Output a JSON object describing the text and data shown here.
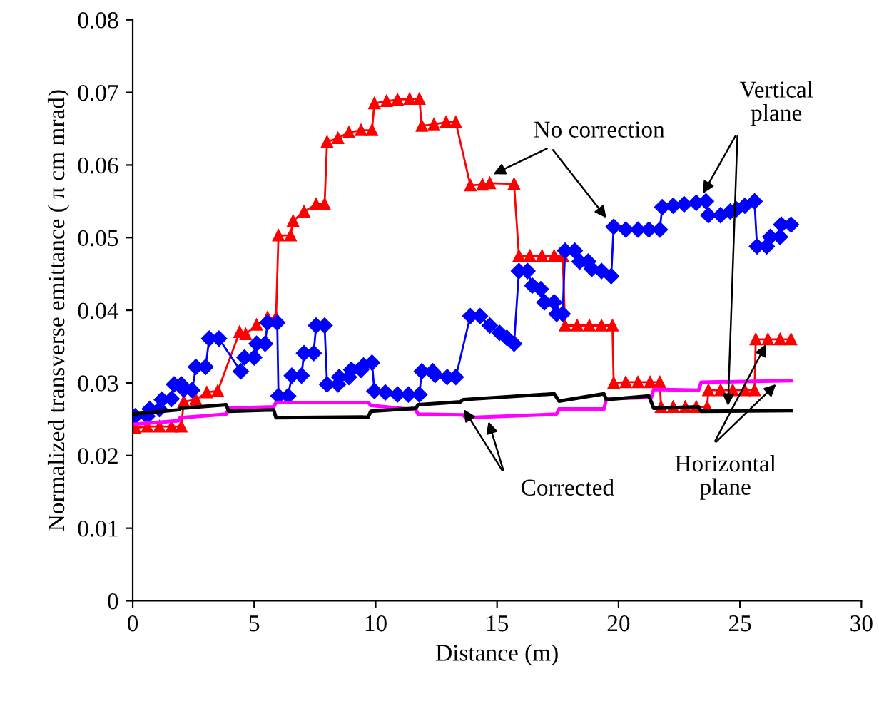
{
  "chart_data": {
    "type": "line",
    "xlabel": "Distance (m)",
    "ylabel": "Normalized transverse emittance ( π cm mrad)",
    "xlim": [
      0,
      30
    ],
    "ylim": [
      0,
      0.08
    ],
    "xticks": [
      0,
      5,
      10,
      15,
      20,
      25,
      30
    ],
    "yticks": [
      0,
      0.01,
      0.02,
      0.03,
      0.04,
      0.05,
      0.06,
      0.07,
      0.08
    ],
    "grid": false,
    "annotations": [
      {
        "text": "No correction",
        "x": 14.7,
        "y": 0.0585
      },
      {
        "text": "Vertical plane",
        "x": 23.4,
        "y": 0.0556
      },
      {
        "text": "Corrected",
        "x": 13.55,
        "y": 0.0268
      },
      {
        "text": "Horizontal plane",
        "x": 26.15,
        "y": 0.0358
      }
    ],
    "series": [
      {
        "color": "#ff0000",
        "marker": "triangle",
        "x": [
          0.1,
          0.6,
          1.1,
          1.6,
          2.0,
          2.1,
          2.6,
          3.05,
          3.5,
          4.4,
          4.65,
          5.1,
          5.55,
          5.9,
          6.0,
          6.5,
          6.6,
          7.05,
          7.55,
          7.9,
          8.0,
          8.45,
          8.9,
          9.4,
          9.85,
          9.95,
          10.45,
          10.9,
          11.4,
          11.8,
          11.9,
          12.4,
          12.9,
          13.3,
          13.9,
          14.4,
          14.7,
          15.7,
          15.9,
          16.35,
          16.85,
          17.35,
          17.7,
          17.8,
          18.3,
          18.8,
          19.3,
          19.75,
          19.8,
          20.3,
          20.8,
          21.3,
          21.7,
          21.75,
          22.25,
          22.75,
          23.2,
          23.65,
          23.7,
          24.2,
          24.7,
          25.2,
          25.6,
          25.65,
          26.15,
          26.65,
          27.1
        ],
        "values": [
          0.0238,
          0.024,
          0.024,
          0.024,
          0.024,
          0.0274,
          0.0277,
          0.0287,
          0.0289,
          0.037,
          0.0367,
          0.038,
          0.039,
          0.039,
          0.0503,
          0.0503,
          0.0523,
          0.0536,
          0.0546,
          0.0546,
          0.0632,
          0.0637,
          0.0645,
          0.0648,
          0.0648,
          0.0685,
          0.0688,
          0.069,
          0.0691,
          0.0691,
          0.0654,
          0.0656,
          0.0659,
          0.0659,
          0.0572,
          0.0573,
          0.0575,
          0.0574,
          0.0475,
          0.0475,
          0.0475,
          0.0475,
          0.0475,
          0.0379,
          0.0379,
          0.0379,
          0.0379,
          0.0379,
          0.03,
          0.0301,
          0.0301,
          0.0301,
          0.0301,
          0.0267,
          0.0267,
          0.0267,
          0.0267,
          0.0267,
          0.029,
          0.029,
          0.029,
          0.029,
          0.029,
          0.036,
          0.036,
          0.036,
          0.036
        ]
      },
      {
        "color": "#0000ff",
        "marker": "diamond",
        "x": [
          0.1,
          0.6,
          0.7,
          1.1,
          1.2,
          1.6,
          1.7,
          2.0,
          2.1,
          2.45,
          2.6,
          3.0,
          3.15,
          3.55,
          4.45,
          4.6,
          5.0,
          5.1,
          5.45,
          5.55,
          5.95,
          6.0,
          6.4,
          6.55,
          6.95,
          7.05,
          7.45,
          7.55,
          7.9,
          8.0,
          8.45,
          8.5,
          8.9,
          9.0,
          9.4,
          9.5,
          9.85,
          9.95,
          10.4,
          10.9,
          11.35,
          11.8,
          11.9,
          12.35,
          12.45,
          12.95,
          13.3,
          13.9,
          14.3,
          14.7,
          15.1,
          15.4,
          15.7,
          15.9,
          16.25,
          16.45,
          16.8,
          16.95,
          17.35,
          17.45,
          17.7,
          17.8,
          18.2,
          18.4,
          18.75,
          18.9,
          19.3,
          19.7,
          19.8,
          20.3,
          20.8,
          21.25,
          21.7,
          21.8,
          22.25,
          22.7,
          23.2,
          23.6,
          23.7,
          24.2,
          24.6,
          24.85,
          25.2,
          25.6,
          25.7,
          26.1,
          26.25,
          26.65,
          26.7,
          27.1
        ],
        "values": [
          0.0254,
          0.0254,
          0.0264,
          0.0264,
          0.0277,
          0.0278,
          0.0298,
          0.0298,
          0.0291,
          0.029,
          0.0322,
          0.0322,
          0.0361,
          0.0361,
          0.0316,
          0.0335,
          0.0335,
          0.0354,
          0.0354,
          0.0383,
          0.0383,
          0.0282,
          0.0282,
          0.031,
          0.031,
          0.0341,
          0.0341,
          0.0379,
          0.0379,
          0.0298,
          0.0298,
          0.0308,
          0.0308,
          0.0318,
          0.0318,
          0.0324,
          0.0328,
          0.0289,
          0.0287,
          0.0284,
          0.0284,
          0.0284,
          0.0316,
          0.0316,
          0.0311,
          0.0308,
          0.0308,
          0.0392,
          0.0392,
          0.0379,
          0.0369,
          0.0362,
          0.0354,
          0.0454,
          0.0454,
          0.0434,
          0.0429,
          0.0411,
          0.0411,
          0.0395,
          0.0395,
          0.0482,
          0.0482,
          0.0467,
          0.0467,
          0.0457,
          0.0454,
          0.0447,
          0.0515,
          0.0511,
          0.0511,
          0.0511,
          0.0511,
          0.0542,
          0.0544,
          0.0546,
          0.0548,
          0.055,
          0.0531,
          0.0531,
          0.0536,
          0.0539,
          0.0544,
          0.055,
          0.0488,
          0.0488,
          0.0501,
          0.0501,
          0.0518,
          0.0518
        ]
      },
      {
        "color": "#ff00ff",
        "marker": "none",
        "x": [
          0,
          1.9,
          1.95,
          3.85,
          3.95,
          5.8,
          5.9,
          9.7,
          9.8,
          11.65,
          11.75,
          13.6,
          13.7,
          17.45,
          17.55,
          19.4,
          19.5,
          21.35,
          21.45,
          23.3,
          23.4,
          27.1
        ],
        "values": [
          0.0243,
          0.0248,
          0.0252,
          0.0257,
          0.0265,
          0.0267,
          0.0273,
          0.0273,
          0.0269,
          0.0263,
          0.0257,
          0.0256,
          0.0252,
          0.0257,
          0.0264,
          0.0264,
          0.0278,
          0.028,
          0.0291,
          0.029,
          0.0301,
          0.0303
        ]
      },
      {
        "color": "#000000",
        "marker": "none",
        "x": [
          0,
          1.9,
          1.95,
          3.85,
          3.95,
          5.8,
          5.9,
          9.7,
          9.8,
          11.65,
          11.75,
          13.5,
          13.6,
          17.35,
          17.55,
          19.4,
          19.5,
          21.25,
          21.45,
          23.3,
          23.4,
          27.1
        ],
        "values": [
          0.0257,
          0.0263,
          0.0265,
          0.027,
          0.0261,
          0.0263,
          0.0252,
          0.0253,
          0.0261,
          0.0265,
          0.027,
          0.0274,
          0.0277,
          0.0285,
          0.0275,
          0.0285,
          0.0277,
          0.0282,
          0.0265,
          0.0267,
          0.0261,
          0.0262
        ]
      }
    ]
  }
}
